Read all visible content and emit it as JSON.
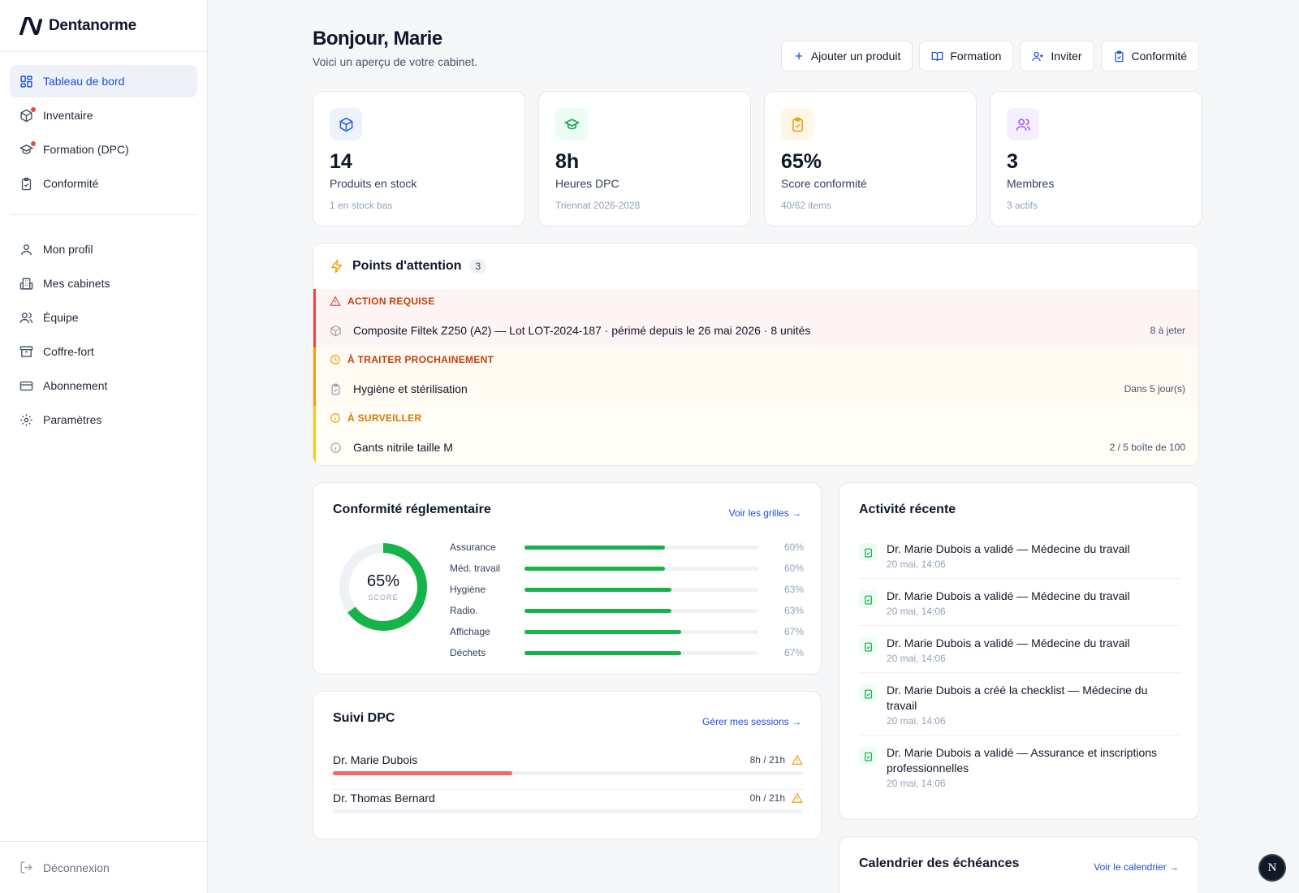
{
  "app": {
    "name": "Dentanorme"
  },
  "sidebar": {
    "primary": [
      {
        "label": "Tableau de bord",
        "icon": "dashboard-icon",
        "active": true,
        "dot": false
      },
      {
        "label": "Inventaire",
        "icon": "package-icon",
        "active": false,
        "dot": true
      },
      {
        "label": "Formation (DPC)",
        "icon": "graduation-cap-icon",
        "active": false,
        "dot": true
      },
      {
        "label": "Conformité",
        "icon": "clipboard-check-icon",
        "active": false,
        "dot": false
      }
    ],
    "secondary": [
      {
        "label": "Mon profil",
        "icon": "user-icon"
      },
      {
        "label": "Mes cabinets",
        "icon": "building-icon"
      },
      {
        "label": "Équipe",
        "icon": "users-icon"
      },
      {
        "label": "Coffre-fort",
        "icon": "archive-icon"
      },
      {
        "label": "Abonnement",
        "icon": "credit-card-icon"
      },
      {
        "label": "Paramètres",
        "icon": "gear-icon"
      }
    ],
    "logout": "Déconnexion"
  },
  "header": {
    "title": "Bonjour, Marie",
    "subtitle": "Voici un aperçu de votre cabinet.",
    "actions": [
      {
        "label": "Ajouter un produit",
        "icon": "plus-icon"
      },
      {
        "label": "Formation",
        "icon": "book-open-icon"
      },
      {
        "label": "Inviter",
        "icon": "user-plus-icon"
      },
      {
        "label": "Conformité",
        "icon": "clipboard-check-icon"
      }
    ]
  },
  "stats": [
    {
      "value": "14",
      "label": "Produits en stock",
      "sub": "1 en stock bas",
      "icon": "package-icon",
      "color": "#2563eb",
      "bg": "#eef2fd"
    },
    {
      "value": "8h",
      "label": "Heures DPC",
      "sub": "Triennat 2026-2028",
      "icon": "graduation-cap-icon",
      "color": "#16a34a",
      "bg": "#ecfdf3"
    },
    {
      "value": "65%",
      "label": "Score conformité",
      "sub": "40/62 items",
      "icon": "clipboard-check-icon",
      "color": "#f59e0b",
      "bg": "#fef6e7"
    },
    {
      "value": "3",
      "label": "Membres",
      "sub": "3 actifs",
      "icon": "users-icon",
      "color": "#a855f7",
      "bg": "#f6effe"
    }
  ],
  "attention": {
    "title": "Points d'attention",
    "count": "3",
    "groups": [
      {
        "heading": "ACTION REQUISE",
        "tone": "red",
        "heading_icon": "alert-triangle-icon",
        "item": "Composite Filtek Z250 (A2) — Lot LOT-2024-187 · périmé depuis le 26 mai 2026 · 8 unités",
        "item_icon": "package-icon",
        "meta": "8 à jeter"
      },
      {
        "heading": "À TRAITER PROCHAINEMENT",
        "tone": "orange",
        "heading_icon": "clock-icon",
        "item": "Hygiène et stérilisation",
        "item_icon": "clipboard-check-icon",
        "meta": "Dans 5 jour(s)"
      },
      {
        "heading": "À SURVEILLER",
        "tone": "yellow",
        "heading_icon": "info-icon",
        "item": "Gants nitrile taille M",
        "item_icon": "info-icon",
        "meta": "2 / 5 boîte de 100"
      }
    ]
  },
  "compliance": {
    "title": "Conformité réglementaire",
    "link": "Voir les grilles →",
    "score": 65,
    "score_text": "65%",
    "score_label": "SCORE",
    "bars": [
      {
        "name": "Assurance",
        "value": 60,
        "text": "60%"
      },
      {
        "name": "Méd. travail",
        "value": 60,
        "text": "60%"
      },
      {
        "name": "Hygiène",
        "value": 63,
        "text": "63%"
      },
      {
        "name": "Radio.",
        "value": 63,
        "text": "63%"
      },
      {
        "name": "Affichage",
        "value": 67,
        "text": "67%"
      },
      {
        "name": "Déchets",
        "value": 67,
        "text": "67%"
      }
    ]
  },
  "dpc": {
    "title": "Suivi DPC",
    "link": "Gérer mes sessions →",
    "rows": [
      {
        "name": "Dr. Marie Dubois",
        "hours": "8h / 21h",
        "done": 8,
        "target": 21
      },
      {
        "name": "Dr. Thomas Bernard",
        "hours": "0h / 21h",
        "done": 0,
        "target": 21
      }
    ]
  },
  "activity": {
    "title": "Activité récente",
    "items": [
      {
        "text": "Dr. Marie Dubois a validé — Médecine du travail",
        "date": "20 mai, 14:06"
      },
      {
        "text": "Dr. Marie Dubois a validé — Médecine du travail",
        "date": "20 mai, 14:06"
      },
      {
        "text": "Dr. Marie Dubois a validé — Médecine du travail",
        "date": "20 mai, 14:06"
      },
      {
        "text": "Dr. Marie Dubois a créé la checklist — Médecine du travail",
        "date": "20 mai, 14:06"
      },
      {
        "text": "Dr. Marie Dubois a validé — Assurance et inscriptions professionnelles",
        "date": "20 mai, 14:06"
      }
    ]
  },
  "calendar": {
    "title": "Calendrier des échéances",
    "link": "Voir le calendrier →"
  },
  "fab": {
    "label": "N"
  }
}
